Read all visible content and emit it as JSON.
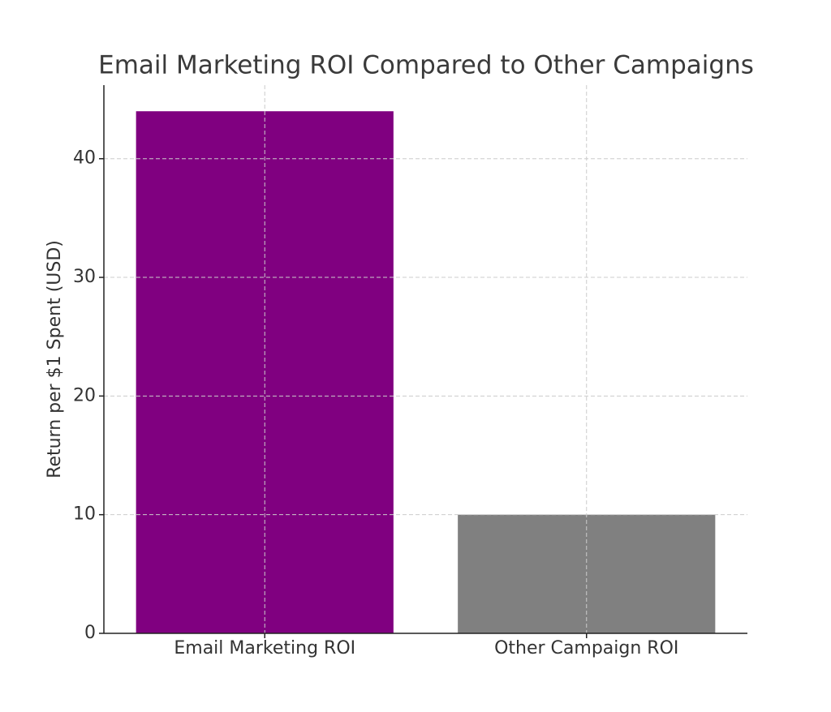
{
  "chart_data": {
    "type": "bar",
    "title": "Email Marketing ROI Compared to Other Campaigns",
    "y_label": "Return per $1 Spent (USD)",
    "categories": [
      "Email Marketing ROI",
      "Other Campaign ROI"
    ],
    "values": [
      44,
      10
    ],
    "colors": [
      "#800080",
      "#808080"
    ],
    "ylim": [
      0,
      46.2
    ],
    "yticks": [
      0,
      10,
      20,
      30,
      40
    ],
    "grid": true
  }
}
